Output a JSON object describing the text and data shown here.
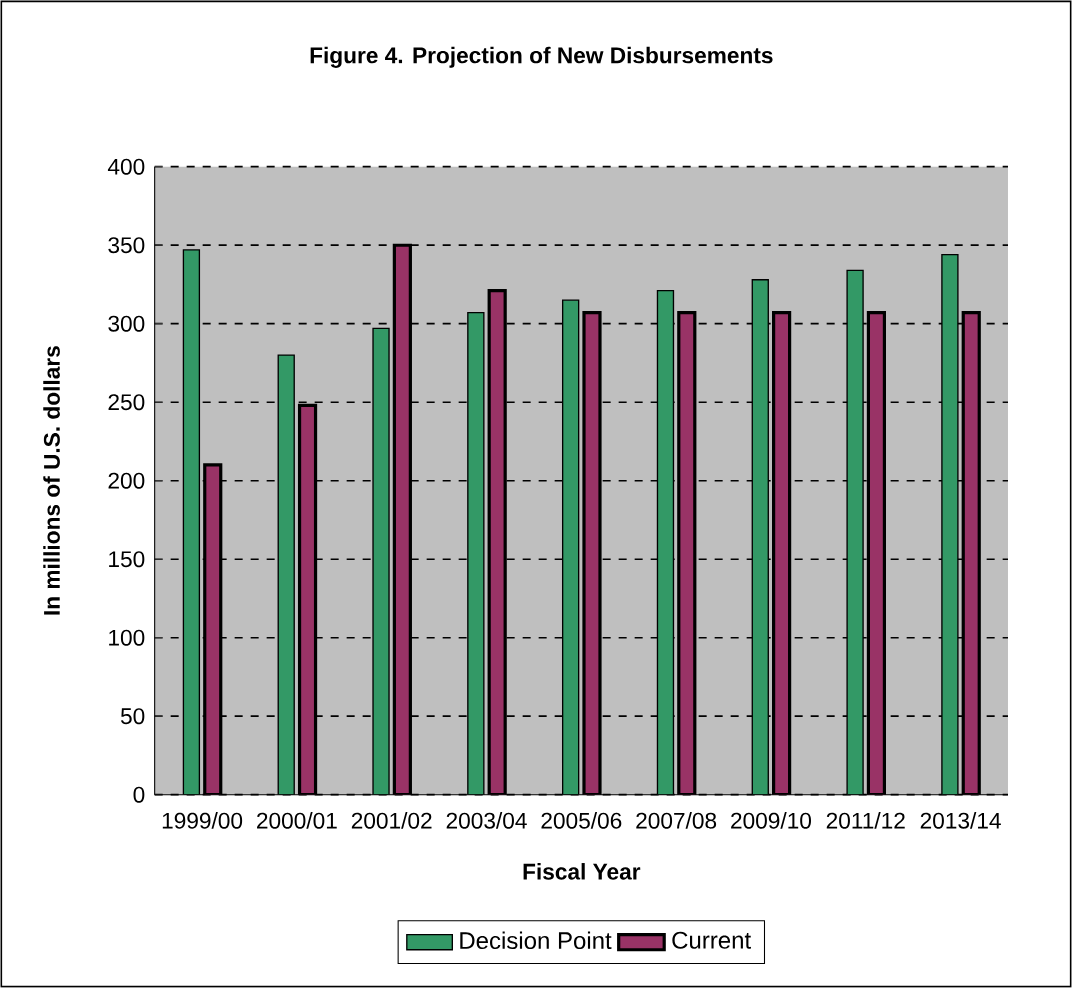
{
  "chart_data": {
    "type": "bar",
    "title": "Figure 4.  Projection of New Disbursements",
    "xlabel": "Fiscal Year",
    "ylabel": "In millions of U.S. dollars",
    "categories": [
      "1999/00",
      "2000/01",
      "2001/02",
      "2003/04",
      "2005/06",
      "2007/08",
      "2009/10",
      "2011/12",
      "2013/14"
    ],
    "series": [
      {
        "name": "Decision Point",
        "color": "#339966",
        "values": [
          347,
          280,
          297,
          307,
          315,
          321,
          328,
          334,
          344
        ]
      },
      {
        "name": "Current",
        "color": "#993366",
        "values": [
          210,
          248,
          350,
          321,
          307,
          307,
          307,
          307,
          307
        ]
      }
    ],
    "ylim": [
      0,
      400
    ],
    "yticks": [
      0,
      50,
      100,
      150,
      200,
      250,
      300,
      350,
      400
    ],
    "grid": "y",
    "legend": "bottom"
  }
}
